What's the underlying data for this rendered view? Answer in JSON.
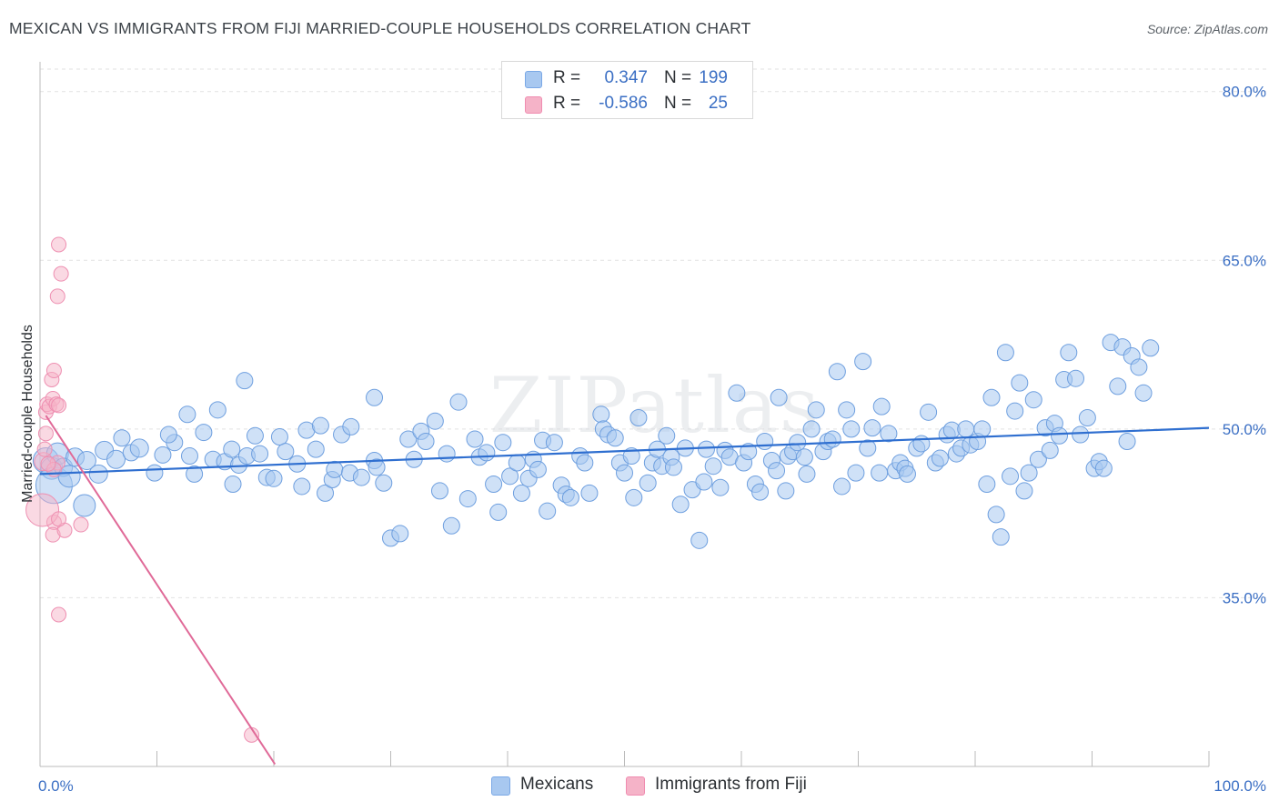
{
  "title": "MEXICAN VS IMMIGRANTS FROM FIJI MARRIED-COUPLE HOUSEHOLDS CORRELATION CHART",
  "source": "Source: ZipAtlas.com",
  "watermark": "ZIPatlas",
  "legend_top": [
    {
      "r_label": "R =",
      "r_value": "0.347",
      "n_label": "N =",
      "n_value": "199",
      "color": "#a8c8f0"
    },
    {
      "r_label": "R =",
      "r_value": "-0.586",
      "n_label": "N =",
      "n_value": "25",
      "color": "#f5b3c8"
    }
  ],
  "legend_bottom": [
    {
      "label": "Mexicans",
      "color": "#a8c8f0"
    },
    {
      "label": "Immigrants from Fiji",
      "color": "#f5b3c8"
    }
  ],
  "chart_data": {
    "type": "scatter",
    "title": "MEXICAN VS IMMIGRANTS FROM FIJI MARRIED-COUPLE HOUSEHOLDS CORRELATION CHART",
    "xlabel": "",
    "ylabel": "Married-couple Households",
    "xlim": [
      0,
      100
    ],
    "ylim": [
      20,
      82
    ],
    "x_tick_labels": [
      "0.0%",
      "100.0%"
    ],
    "y_ticks": [
      35,
      50,
      65,
      80
    ],
    "y_tick_labels": [
      "35.0%",
      "50.0%",
      "65.0%",
      "80.0%"
    ],
    "grid": true,
    "series": [
      {
        "name": "Mexicans",
        "color": "#7aa8e6",
        "trend": {
          "x": [
            0,
            100
          ],
          "y": [
            46.0,
            50.1
          ]
        },
        "points": [
          [
            0.5,
            47.2,
            14
          ],
          [
            1.0,
            46.5,
            12
          ],
          [
            1.2,
            45.0,
            20
          ],
          [
            1.5,
            47.8,
            12
          ],
          [
            2.0,
            46.6,
            10
          ],
          [
            2.5,
            45.8,
            12
          ],
          [
            3.0,
            47.5,
            10
          ],
          [
            3.8,
            43.2,
            12
          ],
          [
            4.0,
            47.2,
            10
          ],
          [
            5.0,
            46.0,
            10
          ],
          [
            5.5,
            48.1,
            10
          ],
          [
            6.5,
            47.3,
            10
          ],
          [
            7.0,
            49.2,
            9
          ],
          [
            7.8,
            47.9,
            9
          ],
          [
            8.5,
            48.3,
            10
          ],
          [
            9.8,
            46.1,
            9
          ],
          [
            10.5,
            47.7,
            9
          ],
          [
            11.5,
            48.8,
            9
          ],
          [
            11.0,
            49.5,
            9
          ],
          [
            12.6,
            51.3,
            9
          ],
          [
            12.8,
            47.6,
            9
          ],
          [
            13.2,
            46.0,
            9
          ],
          [
            14.0,
            49.7,
            9
          ],
          [
            14.8,
            47.3,
            9
          ],
          [
            15.2,
            51.7,
            9
          ],
          [
            15.8,
            47.1,
            9
          ],
          [
            16.4,
            48.2,
            9
          ],
          [
            16.5,
            45.1,
            9
          ],
          [
            17.0,
            46.8,
            9
          ],
          [
            17.5,
            54.3,
            9
          ],
          [
            17.7,
            47.6,
            9
          ],
          [
            18.4,
            49.4,
            9
          ],
          [
            18.8,
            47.8,
            9
          ],
          [
            19.4,
            45.7,
            9
          ],
          [
            20.0,
            45.6,
            9
          ],
          [
            20.5,
            49.3,
            9
          ],
          [
            21.0,
            48.0,
            9
          ],
          [
            22.0,
            46.9,
            9
          ],
          [
            22.4,
            44.9,
            9
          ],
          [
            22.8,
            49.9,
            9
          ],
          [
            23.6,
            48.2,
            9
          ],
          [
            24.0,
            50.3,
            9
          ],
          [
            24.4,
            44.3,
            9
          ],
          [
            25.0,
            45.5,
            9
          ],
          [
            25.2,
            46.4,
            9
          ],
          [
            25.8,
            49.5,
            9
          ],
          [
            26.5,
            46.1,
            9
          ],
          [
            26.6,
            50.2,
            9
          ],
          [
            27.5,
            45.7,
            9
          ],
          [
            28.6,
            47.2,
            9
          ],
          [
            28.8,
            46.6,
            9
          ],
          [
            28.6,
            52.8,
            9
          ],
          [
            29.4,
            45.2,
            9
          ],
          [
            30.0,
            40.3,
            9
          ],
          [
            30.8,
            40.7,
            9
          ],
          [
            31.5,
            49.1,
            9
          ],
          [
            32.0,
            47.3,
            9
          ],
          [
            32.6,
            49.8,
            9
          ],
          [
            33.0,
            48.9,
            9
          ],
          [
            33.8,
            50.7,
            9
          ],
          [
            34.2,
            44.5,
            9
          ],
          [
            34.8,
            47.8,
            9
          ],
          [
            35.2,
            41.4,
            9
          ],
          [
            35.8,
            52.4,
            9
          ],
          [
            36.6,
            43.8,
            9
          ],
          [
            37.2,
            49.1,
            9
          ],
          [
            37.6,
            47.5,
            9
          ],
          [
            38.2,
            47.9,
            9
          ],
          [
            38.8,
            45.1,
            9
          ],
          [
            39.2,
            42.6,
            9
          ],
          [
            39.6,
            48.8,
            9
          ],
          [
            40.2,
            45.8,
            9
          ],
          [
            40.8,
            47.0,
            9
          ],
          [
            41.2,
            44.3,
            9
          ],
          [
            41.8,
            45.6,
            9
          ],
          [
            42.2,
            47.3,
            9
          ],
          [
            42.6,
            46.4,
            9
          ],
          [
            43.0,
            49.0,
            9
          ],
          [
            43.4,
            42.7,
            9
          ],
          [
            44.0,
            48.8,
            9
          ],
          [
            44.6,
            45.0,
            9
          ],
          [
            45.0,
            44.2,
            9
          ],
          [
            45.4,
            43.9,
            9
          ],
          [
            46.2,
            47.6,
            9
          ],
          [
            46.6,
            47.0,
            9
          ],
          [
            47.0,
            44.3,
            9
          ],
          [
            48.0,
            51.3,
            9
          ],
          [
            48.2,
            50.0,
            9
          ],
          [
            48.6,
            49.5,
            9
          ],
          [
            49.2,
            49.2,
            9
          ],
          [
            49.6,
            47.0,
            9
          ],
          [
            50.0,
            46.1,
            9
          ],
          [
            50.6,
            47.6,
            9
          ],
          [
            50.8,
            43.9,
            9
          ],
          [
            51.2,
            51.0,
            9
          ],
          [
            52.0,
            45.2,
            9
          ],
          [
            52.4,
            47.0,
            9
          ],
          [
            52.8,
            48.2,
            9
          ],
          [
            53.2,
            46.7,
            9
          ],
          [
            53.6,
            49.4,
            9
          ],
          [
            54.0,
            47.5,
            9
          ],
          [
            54.2,
            46.6,
            9
          ],
          [
            54.8,
            43.3,
            9
          ],
          [
            55.2,
            48.3,
            9
          ],
          [
            55.8,
            44.6,
            9
          ],
          [
            56.4,
            40.1,
            9
          ],
          [
            56.8,
            45.3,
            9
          ],
          [
            57.0,
            48.2,
            9
          ],
          [
            57.6,
            46.7,
            9
          ],
          [
            58.2,
            44.8,
            9
          ],
          [
            58.6,
            48.1,
            9
          ],
          [
            59.0,
            47.5,
            9
          ],
          [
            59.6,
            53.2,
            9
          ],
          [
            60.2,
            47.0,
            9
          ],
          [
            60.6,
            48.0,
            9
          ],
          [
            61.2,
            45.1,
            9
          ],
          [
            61.6,
            44.4,
            9
          ],
          [
            62.0,
            48.9,
            9
          ],
          [
            62.6,
            47.2,
            9
          ],
          [
            63.0,
            46.3,
            9
          ],
          [
            63.2,
            52.8,
            9
          ],
          [
            63.8,
            44.5,
            9
          ],
          [
            64.0,
            47.6,
            9
          ],
          [
            64.4,
            48.0,
            9
          ],
          [
            64.8,
            48.8,
            9
          ],
          [
            65.4,
            47.5,
            9
          ],
          [
            65.6,
            46.0,
            9
          ],
          [
            66.0,
            50.0,
            9
          ],
          [
            66.4,
            51.7,
            9
          ],
          [
            67.0,
            48.0,
            9
          ],
          [
            67.4,
            48.9,
            9
          ],
          [
            67.8,
            49.1,
            9
          ],
          [
            68.2,
            55.1,
            9
          ],
          [
            68.6,
            44.9,
            9
          ],
          [
            69.0,
            51.7,
            9
          ],
          [
            69.4,
            50.0,
            9
          ],
          [
            69.8,
            46.1,
            9
          ],
          [
            70.4,
            56.0,
            9
          ],
          [
            70.8,
            48.3,
            9
          ],
          [
            71.2,
            50.1,
            9
          ],
          [
            71.8,
            46.1,
            9
          ],
          [
            72.0,
            52.0,
            9
          ],
          [
            72.6,
            49.6,
            9
          ],
          [
            73.2,
            46.3,
            9
          ],
          [
            73.6,
            47.0,
            9
          ],
          [
            74.0,
            46.5,
            9
          ],
          [
            74.2,
            46.0,
            9
          ],
          [
            75.0,
            48.3,
            9
          ],
          [
            75.4,
            48.7,
            9
          ],
          [
            76.0,
            51.5,
            9
          ],
          [
            76.6,
            47.0,
            9
          ],
          [
            77.0,
            47.4,
            9
          ],
          [
            77.6,
            49.5,
            9
          ],
          [
            78.0,
            49.9,
            9
          ],
          [
            78.4,
            47.8,
            9
          ],
          [
            78.8,
            48.3,
            9
          ],
          [
            79.2,
            50.0,
            9
          ],
          [
            79.6,
            48.6,
            9
          ],
          [
            80.2,
            48.9,
            9
          ],
          [
            80.6,
            50.0,
            9
          ],
          [
            81.0,
            45.1,
            9
          ],
          [
            81.4,
            52.8,
            9
          ],
          [
            81.8,
            42.4,
            9
          ],
          [
            82.2,
            40.4,
            9
          ],
          [
            82.6,
            56.8,
            9
          ],
          [
            83.0,
            45.8,
            9
          ],
          [
            83.4,
            51.6,
            9
          ],
          [
            83.8,
            54.1,
            9
          ],
          [
            84.2,
            44.5,
            9
          ],
          [
            84.6,
            46.1,
            9
          ],
          [
            85.0,
            52.6,
            9
          ],
          [
            85.4,
            47.3,
            9
          ],
          [
            86.0,
            50.1,
            9
          ],
          [
            86.4,
            48.1,
            9
          ],
          [
            86.8,
            50.5,
            9
          ],
          [
            87.2,
            49.4,
            9
          ],
          [
            87.6,
            54.4,
            9
          ],
          [
            88.0,
            56.8,
            9
          ],
          [
            88.6,
            54.5,
            9
          ],
          [
            89.0,
            49.5,
            9
          ],
          [
            89.6,
            51.0,
            9
          ],
          [
            90.2,
            46.5,
            9
          ],
          [
            90.6,
            47.1,
            9
          ],
          [
            91.0,
            46.5,
            9
          ],
          [
            91.6,
            57.7,
            9
          ],
          [
            92.2,
            53.8,
            9
          ],
          [
            92.6,
            57.3,
            9
          ],
          [
            93.0,
            48.9,
            9
          ],
          [
            93.4,
            56.5,
            9
          ],
          [
            94.0,
            55.5,
            9
          ],
          [
            94.4,
            53.2,
            9
          ],
          [
            95.0,
            57.2,
            9
          ]
        ]
      },
      {
        "name": "Immigrants from Fiji",
        "color": "#f08cb0",
        "trend": {
          "x": [
            0.5,
            20.1
          ],
          "y": [
            51.2,
            20.2
          ]
        },
        "points": [
          [
            0.3,
            47.1,
            10
          ],
          [
            0.4,
            48.2,
            8
          ],
          [
            0.5,
            49.6,
            8
          ],
          [
            0.5,
            51.5,
            8
          ],
          [
            0.6,
            52.2,
            8
          ],
          [
            0.8,
            52.0,
            8
          ],
          [
            1.0,
            54.4,
            8
          ],
          [
            1.1,
            52.7,
            8
          ],
          [
            1.2,
            55.2,
            8
          ],
          [
            1.4,
            52.2,
            8
          ],
          [
            1.6,
            52.1,
            8
          ],
          [
            1.5,
            47.0,
            8
          ],
          [
            1.2,
            46.4,
            8
          ],
          [
            0.7,
            46.9,
            8
          ],
          [
            1.6,
            66.4,
            8
          ],
          [
            1.8,
            63.8,
            8
          ],
          [
            1.5,
            61.8,
            8
          ],
          [
            1.2,
            41.7,
            8
          ],
          [
            1.1,
            40.6,
            8
          ],
          [
            2.1,
            41.0,
            8
          ],
          [
            3.5,
            41.5,
            8
          ],
          [
            1.6,
            33.5,
            8
          ],
          [
            0.2,
            42.8,
            18
          ],
          [
            1.6,
            42.0,
            8
          ],
          [
            18.1,
            22.8,
            8
          ]
        ]
      }
    ]
  }
}
